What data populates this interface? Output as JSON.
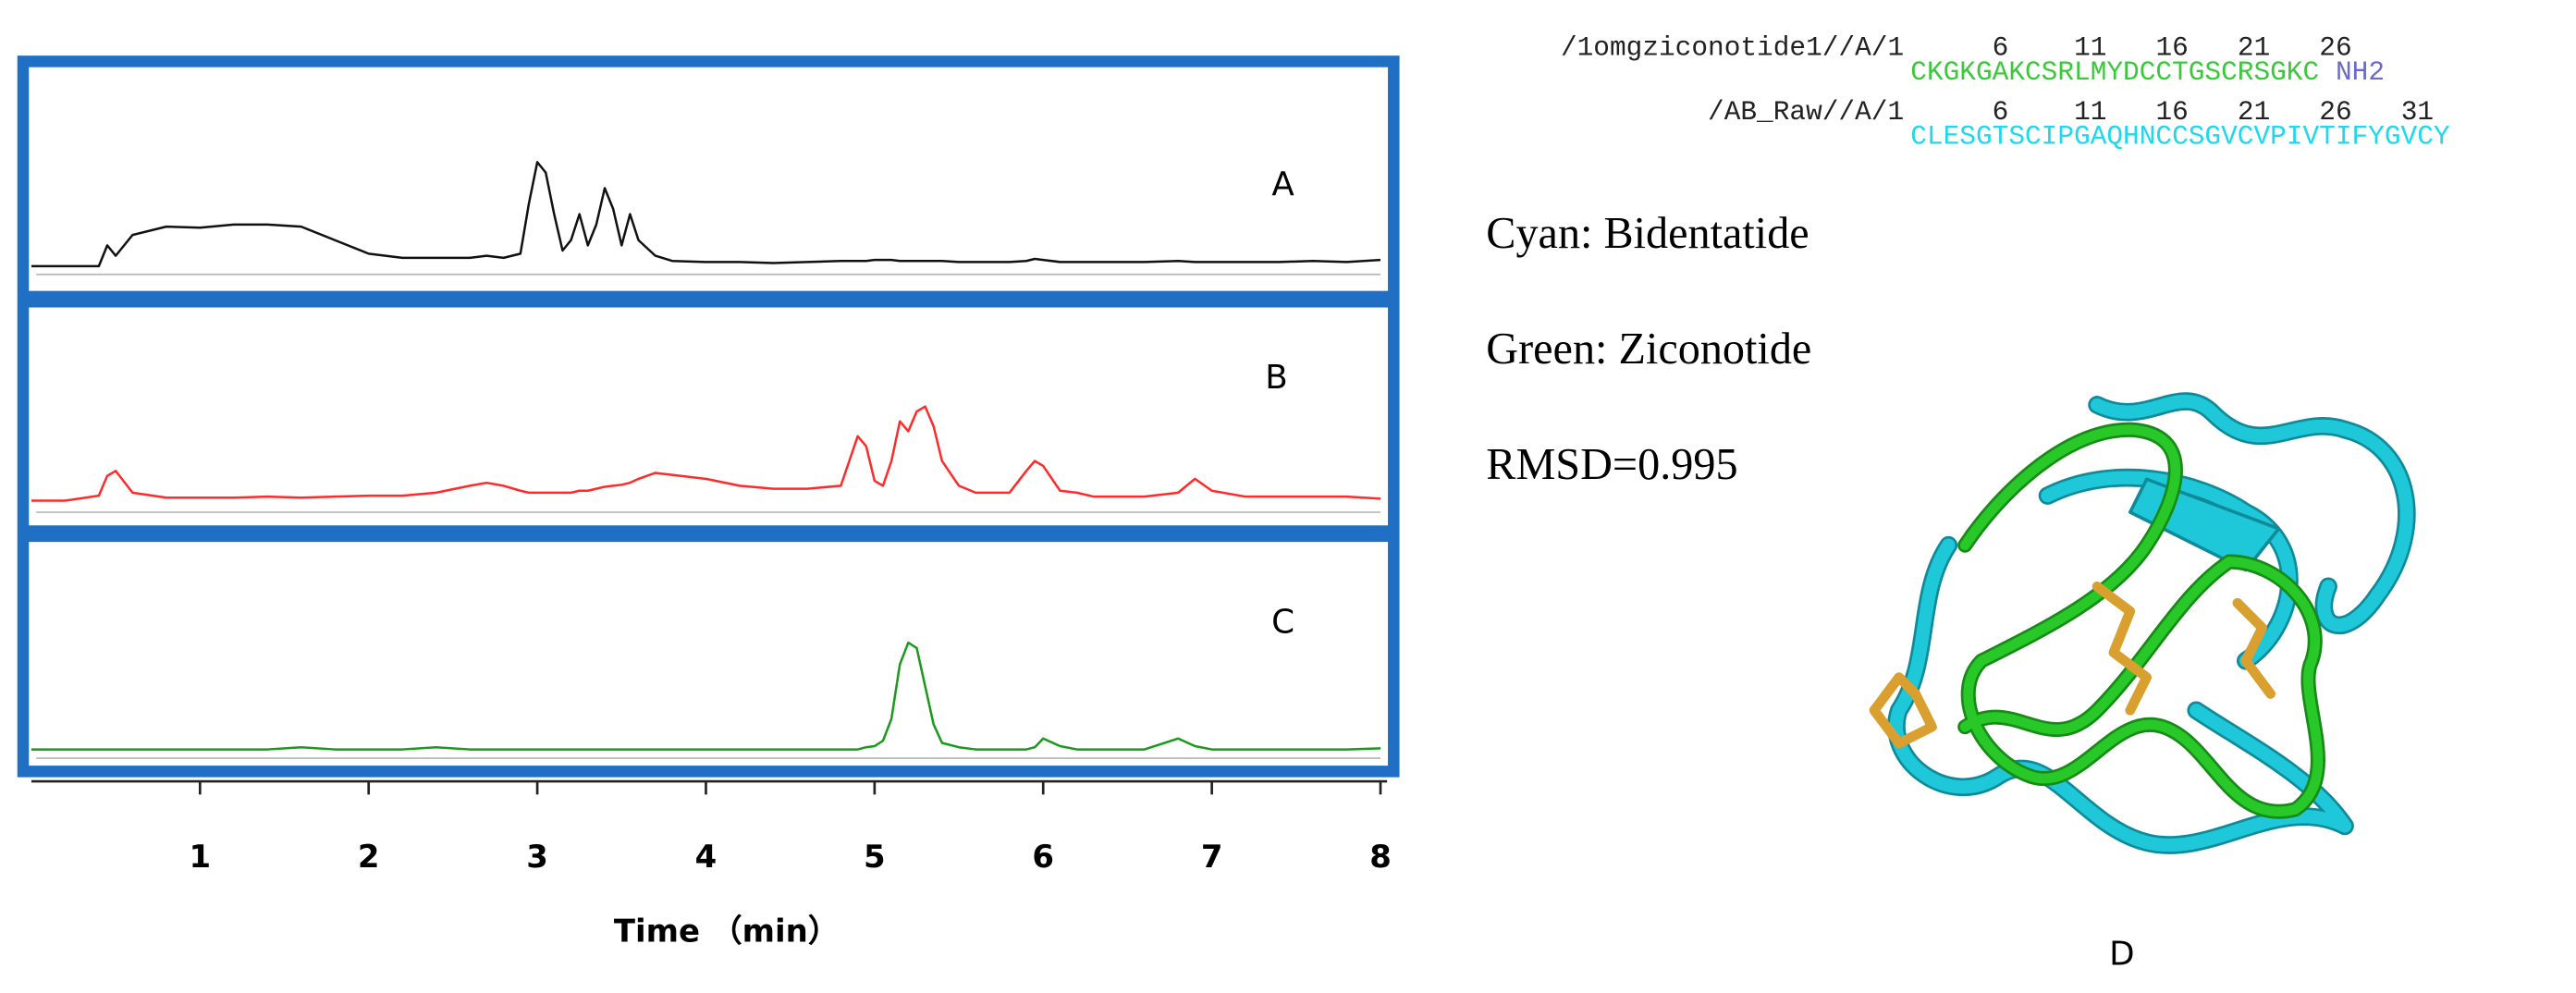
{
  "chart_data": {
    "type": "line",
    "x_label": "Time （min）",
    "x": [
      0,
      0.2,
      0.4,
      0.45,
      0.5,
      0.6,
      0.8,
      1.0,
      1.2,
      1.4,
      1.6,
      1.8,
      2.0,
      2.2,
      2.4,
      2.6,
      2.7,
      2.8,
      2.9,
      2.95,
      3.0,
      3.05,
      3.1,
      3.15,
      3.2,
      3.25,
      3.3,
      3.35,
      3.4,
      3.45,
      3.5,
      3.55,
      3.6,
      3.7,
      3.8,
      4.0,
      4.2,
      4.4,
      4.6,
      4.8,
      4.85,
      4.9,
      4.95,
      5.0,
      5.05,
      5.1,
      5.15,
      5.2,
      5.25,
      5.3,
      5.35,
      5.4,
      5.5,
      5.6,
      5.8,
      5.9,
      5.95,
      6.0,
      6.1,
      6.2,
      6.3,
      6.4,
      6.6,
      6.8,
      6.9,
      7.0,
      7.2,
      7.4,
      7.6,
      7.8,
      8.0
    ],
    "xlim": [
      0,
      8
    ],
    "xticks": [
      1,
      2,
      3,
      4,
      5,
      6,
      7,
      8
    ],
    "ylim": [
      0,
      100
    ],
    "series": [
      {
        "name": "A",
        "color": "#111111",
        "values": [
          0,
          0,
          0,
          20,
          10,
          30,
          38,
          37,
          40,
          40,
          38,
          25,
          12,
          8,
          8,
          8,
          10,
          8,
          12,
          60,
          100,
          90,
          50,
          15,
          25,
          50,
          20,
          40,
          75,
          55,
          20,
          50,
          25,
          10,
          5,
          4,
          4,
          3,
          4,
          5,
          5,
          5,
          5,
          6,
          6,
          6,
          5,
          5,
          5,
          5,
          5,
          5,
          4,
          4,
          4,
          5,
          7,
          6,
          4,
          4,
          4,
          4,
          4,
          5,
          4,
          4,
          4,
          4,
          5,
          4,
          6
        ]
      },
      {
        "name": "B",
        "color": "#ff2a2a",
        "values": [
          0,
          0,
          5,
          25,
          30,
          8,
          3,
          3,
          3,
          4,
          3,
          4,
          5,
          5,
          8,
          15,
          18,
          15,
          10,
          8,
          8,
          8,
          8,
          8,
          8,
          10,
          10,
          12,
          14,
          15,
          16,
          18,
          22,
          28,
          26,
          22,
          15,
          12,
          12,
          15,
          40,
          65,
          55,
          20,
          15,
          40,
          80,
          70,
          90,
          95,
          75,
          40,
          15,
          8,
          8,
          30,
          40,
          35,
          10,
          8,
          4,
          4,
          4,
          8,
          22,
          10,
          4,
          4,
          4,
          4,
          2
        ]
      },
      {
        "name": "C",
        "color": "#1a9a1a",
        "values": [
          2,
          2,
          2,
          2,
          2,
          2,
          2,
          2,
          2,
          2,
          4,
          2,
          2,
          2,
          4,
          2,
          2,
          2,
          2,
          2,
          2,
          2,
          2,
          2,
          2,
          2,
          2,
          2,
          2,
          2,
          2,
          2,
          2,
          2,
          2,
          2,
          2,
          2,
          2,
          2,
          2,
          2,
          4,
          5,
          10,
          30,
          80,
          100,
          95,
          60,
          25,
          8,
          4,
          2,
          2,
          2,
          4,
          12,
          5,
          2,
          2,
          2,
          2,
          12,
          5,
          2,
          2,
          2,
          2,
          2,
          3
        ]
      }
    ]
  },
  "alignment": [
    {
      "name": "/1omgziconotide1//A/1",
      "positions": [
        6,
        11,
        16,
        21,
        26
      ],
      "sequence": "CKGKGAKCSRLMYDCCTGSCRSGKC",
      "suffix": "NH2"
    },
    {
      "name": "/AB_Raw//A/1",
      "positions": [
        6,
        11,
        16,
        21,
        26,
        31
      ],
      "sequence": "CLESGTSCIPGAQHNCCSGVCVPIVTIFYGVCY"
    }
  ],
  "legend": [
    "Cyan: Bidentatide",
    "Green: Ziconotide",
    "RMSD=0.995"
  ],
  "panel_label": "D"
}
